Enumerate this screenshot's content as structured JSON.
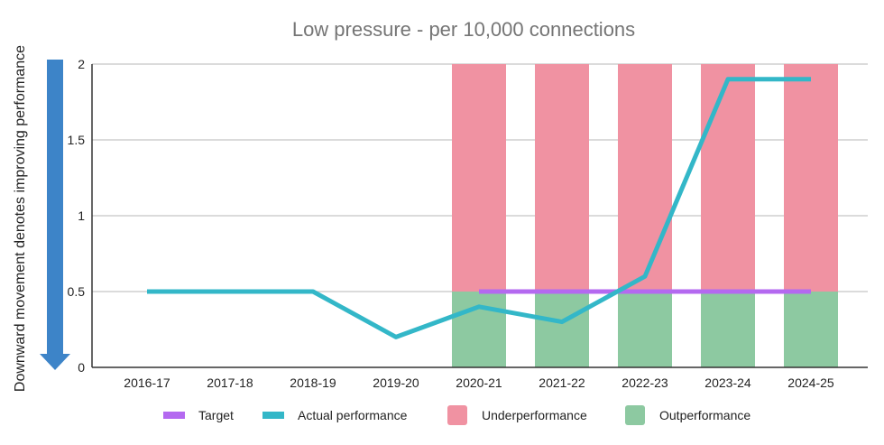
{
  "chart_data": {
    "type": "bar",
    "title": "Low pressure - per 10,000 connections",
    "side_note": "Downward movement denotes improving performance",
    "categories": [
      "2016-17",
      "2017-18",
      "2018-19",
      "2019-20",
      "2020-21",
      "2021-22",
      "2022-23",
      "2023-24",
      "2024-25"
    ],
    "ylim": [
      0,
      2
    ],
    "yticks": [
      0,
      0.5,
      1,
      1.5,
      2
    ],
    "ytick_labels": [
      "0",
      "0.5",
      "1",
      "1.5",
      "2"
    ],
    "grid": true,
    "legend_position": "bottom",
    "bars": [
      {
        "name": "Outperformance",
        "color": "#8dc9a1",
        "values": [
          null,
          null,
          null,
          null,
          0.5,
          0.5,
          0.5,
          0.5,
          0.5
        ]
      },
      {
        "name": "Underperformance",
        "color": "#f092a2",
        "values": [
          null,
          null,
          null,
          null,
          1.5,
          1.5,
          1.5,
          1.5,
          1.5
        ]
      }
    ],
    "lines": [
      {
        "name": "Target",
        "color": "#b469f0",
        "values": [
          null,
          null,
          null,
          null,
          0.5,
          0.5,
          0.5,
          0.5,
          0.5
        ]
      },
      {
        "name": "Actual performance",
        "color": "#33b7c8",
        "values": [
          0.5,
          0.5,
          0.5,
          0.2,
          0.4,
          0.3,
          0.6,
          1.9,
          1.9
        ]
      }
    ],
    "legend": [
      "Target",
      "Actual performance",
      "Underperformance",
      "Outperformance"
    ],
    "arrow_color": "#3d84c8"
  }
}
